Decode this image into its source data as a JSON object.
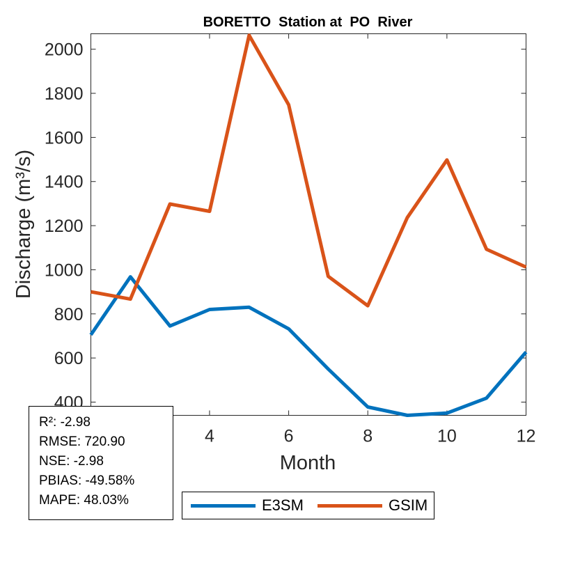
{
  "chart_data": {
    "type": "line",
    "title": "BORETTO  Station at  PO  River",
    "xlabel": "Month",
    "ylabel": "Discharge (m³/s)",
    "xlim": [
      1,
      12
    ],
    "ylim": [
      340,
      2070
    ],
    "xticks": [
      4,
      6,
      8,
      10,
      12
    ],
    "yticks": [
      400,
      600,
      800,
      1000,
      1200,
      1400,
      1600,
      1800,
      2000
    ],
    "grid": false,
    "legend_position": "bottom",
    "x": [
      1,
      2,
      3,
      4,
      5,
      6,
      7,
      8,
      9,
      10,
      11,
      12
    ],
    "series": [
      {
        "name": "E3SM",
        "color": "#0072BD",
        "values": [
          705,
          968,
          745,
          820,
          830,
          732,
          550,
          378,
          340,
          350,
          418,
          627
        ]
      },
      {
        "name": "GSIM",
        "color": "#D95319",
        "values": [
          900,
          867,
          1298,
          1265,
          2063,
          1748,
          970,
          837,
          1237,
          1498,
          1093,
          1012
        ]
      }
    ],
    "stats": [
      "R²: -2.98",
      "RMSE: 720.90",
      "NSE: -2.98",
      "PBIAS: -49.58%",
      "MAPE: 48.03%"
    ]
  }
}
